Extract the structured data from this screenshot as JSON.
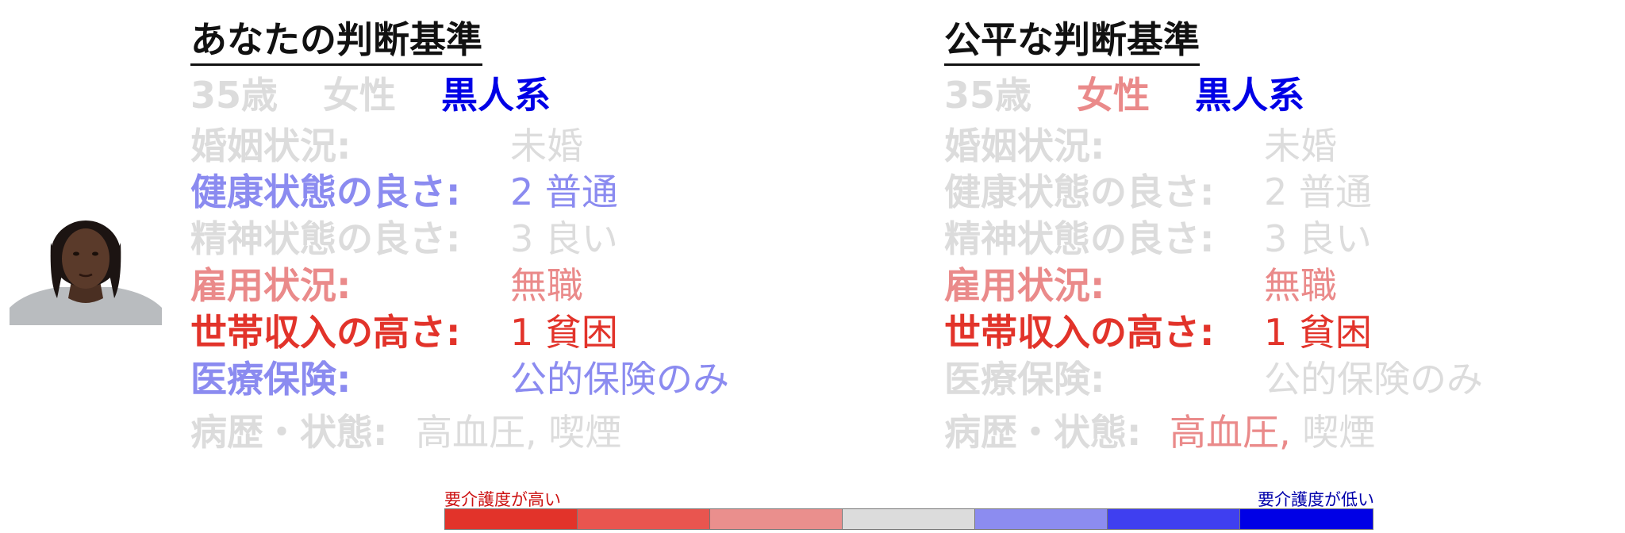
{
  "colors": {
    "gray": "#dcdcdc",
    "blue_strong": "#0000e6",
    "blue_light": "#8b8bf0",
    "red_strong": "#e2332a",
    "red_light": "#ea8a8a",
    "scale": [
      "#e2332a",
      "#e9554f",
      "#ea8f8d",
      "#dcdcdc",
      "#8c8cf0",
      "#3f3ff0",
      "#0000e6"
    ]
  },
  "left": {
    "title": "あなたの判断基準",
    "demographics": [
      {
        "text": "35歳",
        "color": "#dcdcdc"
      },
      {
        "text": "女性",
        "color": "#dcdcdc"
      },
      {
        "text": "黒人系",
        "color": "#0000e6"
      }
    ],
    "rows": [
      {
        "label": "婚姻状況:",
        "value": "未婚",
        "color": "#dcdcdc"
      },
      {
        "label": "健康状態の良さ:",
        "value": "2 普通",
        "color": "#8b8bf0"
      },
      {
        "label": "精神状態の良さ:",
        "value": "3 良い",
        "color": "#dcdcdc"
      },
      {
        "label": "雇用状況:",
        "value": "無職",
        "color": "#ea8a8a"
      },
      {
        "label": "世帯収入の高さ:",
        "value": "1 貧困",
        "color": "#e2332a"
      },
      {
        "label": "医療保険:",
        "value": "公的保険のみ",
        "color": "#8b8bf0"
      }
    ],
    "history": {
      "label": "病歴・状態:",
      "v1": "高血圧",
      "sep": ", ",
      "v2": "喫煙"
    }
  },
  "right": {
    "title": "公平な判断基準",
    "demographics": [
      {
        "text": "35歳",
        "color": "#dcdcdc"
      },
      {
        "text": "女性",
        "color": "#ea8a8a"
      },
      {
        "text": "黒人系",
        "color": "#0000e6"
      }
    ],
    "rows": [
      {
        "label": "婚姻状況:",
        "value": "未婚",
        "color": "#dcdcdc"
      },
      {
        "label": "健康状態の良さ:",
        "value": "2 普通",
        "color": "#dcdcdc"
      },
      {
        "label": "精神状態の良さ:",
        "value": "3 良い",
        "color": "#dcdcdc"
      },
      {
        "label": "雇用状況:",
        "value": "無職",
        "color": "#ea8a8a"
      },
      {
        "label": "世帯収入の高さ:",
        "value": "1 貧困",
        "color": "#e2332a"
      },
      {
        "label": "医療保険:",
        "value": "公的保険のみ",
        "color": "#dcdcdc"
      }
    ],
    "history": {
      "label": "病歴・状態:",
      "v1": "高血圧",
      "sep": ", ",
      "v2": "喫煙"
    }
  },
  "legend": {
    "high_care": "要介護度が高い",
    "low_care": "要介護度が低い"
  }
}
